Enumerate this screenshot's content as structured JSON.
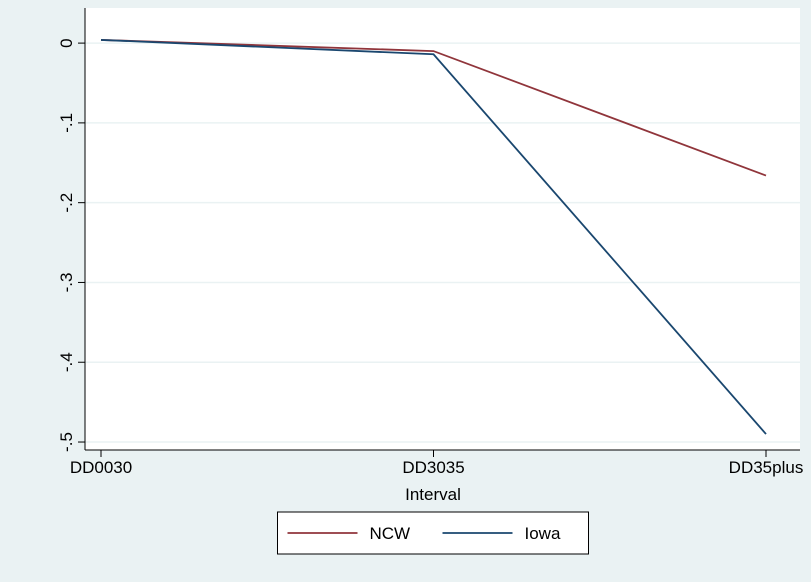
{
  "chart_data": {
    "type": "line",
    "x_label": "Interval",
    "categories": [
      "DD0030",
      "DD3035",
      "DD35plus"
    ],
    "series": [
      {
        "name": "NCW",
        "color": "#90353b",
        "values": [
          0.004,
          -0.01,
          -0.166
        ]
      },
      {
        "name": "Iowa",
        "color": "#1a476f",
        "values": [
          0.004,
          -0.014,
          -0.49
        ]
      }
    ],
    "ylim": [
      -0.51,
      0.044
    ],
    "yticks": [
      0,
      {
        "value": -0.1,
        "label": "-.1"
      },
      {
        "value": -0.2,
        "label": "-.2"
      },
      {
        "value": -0.3,
        "label": "-.3"
      },
      {
        "value": -0.4,
        "label": "-.4"
      },
      {
        "value": -0.5,
        "label": "-.5"
      }
    ],
    "grid": true,
    "legend": "bottom"
  }
}
